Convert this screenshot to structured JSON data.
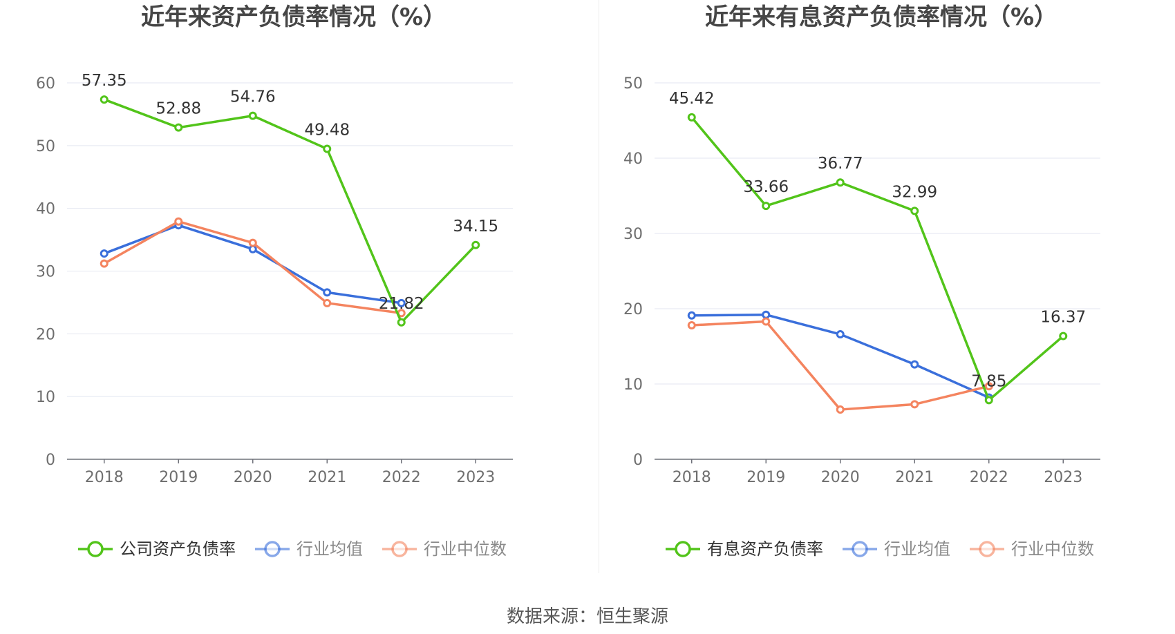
{
  "chart_data": [
    {
      "type": "line",
      "title": "近年来资产负债率情况（%）",
      "categories": [
        "2018",
        "2019",
        "2020",
        "2021",
        "2022",
        "2023"
      ],
      "ylim": [
        0,
        60
      ],
      "yticks": [
        0,
        10,
        20,
        30,
        40,
        50,
        60
      ],
      "grid": true,
      "legend_position": "bottom",
      "series": [
        {
          "name": "公司资产负债率",
          "color": "#52c41a",
          "values": [
            57.35,
            52.88,
            54.76,
            49.48,
            21.82,
            34.15
          ],
          "labels": [
            "57.35",
            "52.88",
            "54.76",
            "49.48",
            "21.82",
            "34.15"
          ]
        },
        {
          "name": "行业均值",
          "color": "#3a6fdb",
          "values": [
            32.8,
            37.3,
            33.5,
            26.6,
            24.9,
            null
          ]
        },
        {
          "name": "行业中位数",
          "color": "#f4845f",
          "values": [
            31.2,
            37.9,
            34.5,
            24.9,
            23.3,
            null
          ]
        }
      ]
    },
    {
      "type": "line",
      "title": "近年来有息资产负债率情况（%）",
      "categories": [
        "2018",
        "2019",
        "2020",
        "2021",
        "2022",
        "2023"
      ],
      "ylim": [
        0,
        50
      ],
      "yticks": [
        0,
        10,
        20,
        30,
        40,
        50
      ],
      "grid": true,
      "legend_position": "bottom",
      "series": [
        {
          "name": "有息资产负债率",
          "color": "#52c41a",
          "values": [
            45.42,
            33.66,
            36.77,
            32.99,
            7.85,
            16.37
          ],
          "labels": [
            "45.42",
            "33.66",
            "36.77",
            "32.99",
            "7.85",
            "16.37"
          ]
        },
        {
          "name": "行业均值",
          "color": "#3a6fdb",
          "values": [
            19.1,
            19.2,
            16.6,
            12.6,
            8.2,
            null
          ]
        },
        {
          "name": "行业中位数",
          "color": "#f4845f",
          "values": [
            17.8,
            18.3,
            6.6,
            7.3,
            9.7,
            null
          ]
        }
      ]
    }
  ],
  "source": "数据来源：恒生聚源"
}
